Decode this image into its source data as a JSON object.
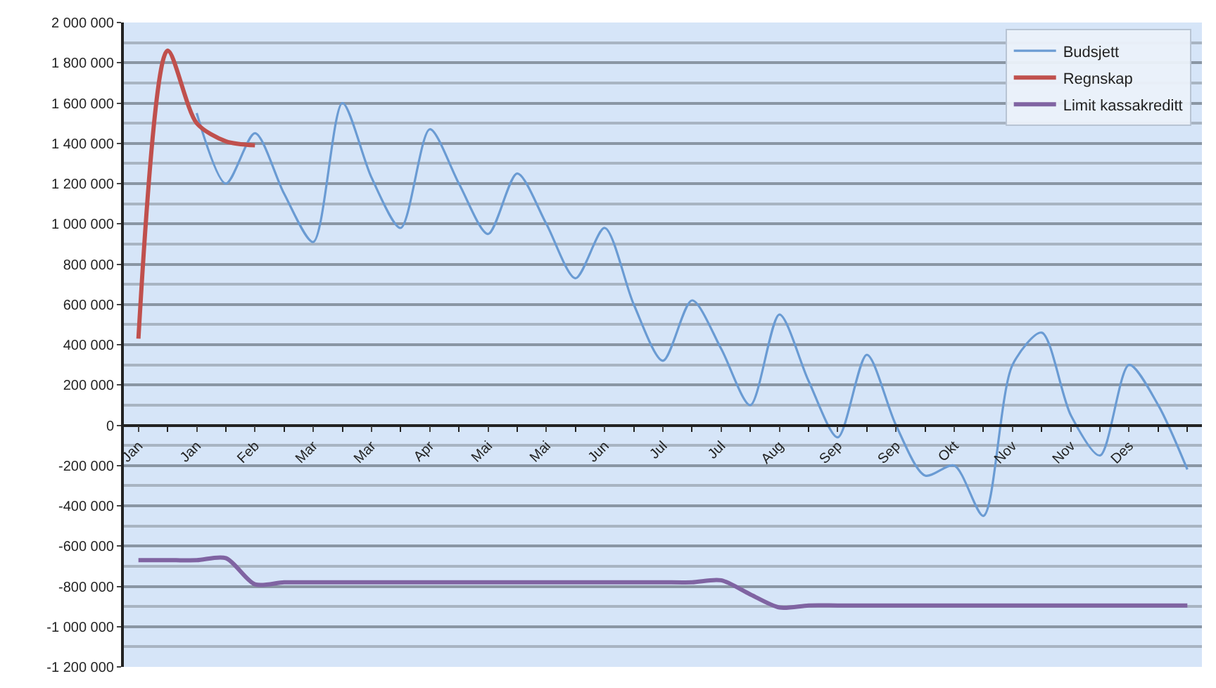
{
  "chart_data": {
    "type": "line",
    "categories": [
      "Jan",
      null,
      "Jan",
      null,
      "Feb",
      null,
      "Mar",
      null,
      "Mar",
      null,
      "Apr",
      null,
      "Mai",
      null,
      "Mai",
      null,
      "Jun",
      null,
      "Jul",
      null,
      "Jul",
      null,
      "Aug",
      null,
      "Sep",
      null,
      "Sep",
      null,
      "Okt",
      null,
      "Nov",
      null,
      "Nov",
      null,
      "Des",
      null,
      null
    ],
    "series": [
      {
        "name": "Budsjett",
        "color": "#6a9bd3",
        "values": [
          null,
          null,
          1550000,
          1200000,
          1450000,
          1150000,
          910000,
          1600000,
          1230000,
          980000,
          1470000,
          1200000,
          950000,
          1250000,
          1000000,
          730000,
          980000,
          600000,
          320000,
          620000,
          380000,
          100000,
          550000,
          220000,
          -60000,
          350000,
          0,
          -250000,
          -200000,
          -450000,
          300000,
          460000,
          50000,
          -150000,
          300000,
          100000,
          -220000
        ]
      },
      {
        "name": "Regnskap",
        "color": "#c0504d",
        "values": [
          430000,
          1860000,
          1500000,
          1410000,
          1390000,
          null,
          null,
          null,
          null,
          null,
          null,
          null,
          null,
          null,
          null,
          null,
          null,
          null,
          null,
          null,
          null,
          null,
          null,
          null,
          null,
          null,
          null,
          null,
          null,
          null,
          null,
          null,
          null,
          null,
          null,
          null,
          null
        ]
      },
      {
        "name": "Limit kassakreditt",
        "color": "#8064a2",
        "values": [
          -670000,
          -670000,
          -670000,
          -660000,
          -790000,
          -780000,
          -780000,
          -780000,
          -780000,
          -780000,
          -780000,
          -780000,
          -780000,
          -780000,
          -780000,
          -780000,
          -780000,
          -780000,
          -780000,
          -780000,
          -770000,
          -840000,
          -905000,
          -895000,
          -895000,
          -895000,
          -895000,
          -895000,
          -895000,
          -895000,
          -895000,
          -895000,
          -895000,
          -895000,
          -895000,
          -895000,
          -895000
        ]
      }
    ],
    "ylim": [
      -1200000,
      2000000
    ],
    "yticks": [
      {
        "value": 2000000,
        "label": "2 000 000"
      },
      {
        "value": 1800000,
        "label": "1 800 000"
      },
      {
        "value": 1600000,
        "label": "1 600 000"
      },
      {
        "value": 1400000,
        "label": "1 400 000"
      },
      {
        "value": 1200000,
        "label": "1 200 000"
      },
      {
        "value": 1000000,
        "label": "1 000 000"
      },
      {
        "value": 800000,
        "label": "800 000"
      },
      {
        "value": 600000,
        "label": "600 000"
      },
      {
        "value": 400000,
        "label": "400 000"
      },
      {
        "value": 200000,
        "label": "200 000"
      },
      0,
      {
        "value": -200000,
        "label": "-200 000"
      },
      {
        "value": -400000,
        "label": "-400 000"
      },
      {
        "value": -600000,
        "label": "-600 000"
      },
      {
        "value": -800000,
        "label": "-800 000"
      },
      {
        "value": -1000000,
        "label": "-1 000 000"
      },
      {
        "value": -1200000,
        "label": "-1 200 000"
      }
    ],
    "grid": "y",
    "legend": "top right",
    "marker": "none",
    "line_style": "solid"
  }
}
